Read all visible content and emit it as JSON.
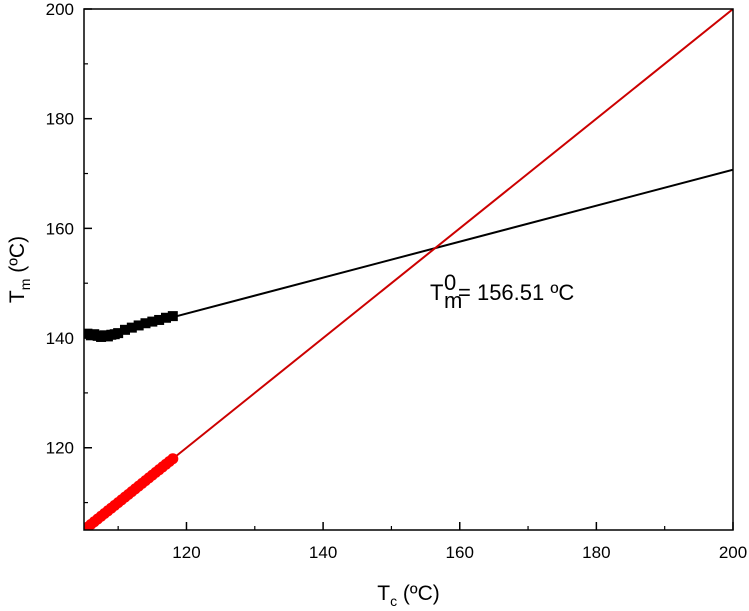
{
  "chart_data": {
    "type": "scatter",
    "xlim": [
      105,
      200
    ],
    "ylim": [
      105,
      200
    ],
    "x_ticks": [
      120,
      140,
      160,
      180,
      200
    ],
    "y_ticks": [
      120,
      140,
      160,
      180,
      200
    ],
    "x_tick_labels": [
      "120",
      "140",
      "160",
      "180",
      "200"
    ],
    "y_tick_labels": [
      "120",
      "140",
      "160",
      "180",
      "200"
    ],
    "xlabel": {
      "main": "T",
      "sub": "c",
      "unit": " (ºC)"
    },
    "ylabel": {
      "main": "T",
      "sub": "m",
      "unit": " (ºC)"
    },
    "grid": false,
    "annotation": {
      "main": "T",
      "sup": "0",
      "sub": "m",
      "rest": " = 156.51 ºC"
    },
    "series": [
      {
        "marker": "square",
        "color": "#000000",
        "x": [
          105.5,
          106.0,
          106.5,
          107.0,
          107.5,
          108.0,
          108.5,
          109.0,
          109.5,
          110.0,
          111.0,
          112.0,
          113.0,
          114.0,
          115.0,
          116.0,
          117.0,
          118.0
        ],
        "y": [
          140.8,
          140.5,
          140.7,
          140.4,
          140.2,
          140.5,
          140.3,
          140.6,
          140.7,
          140.9,
          141.5,
          141.9,
          142.3,
          142.7,
          143.0,
          143.3,
          143.7,
          144.0
        ]
      },
      {
        "marker": "circle",
        "color": "#ff0000",
        "x": [
          105.5,
          106.0,
          106.5,
          107.0,
          107.5,
          108.0,
          108.5,
          109.0,
          109.5,
          110.0,
          110.5,
          111.0,
          111.5,
          112.0,
          112.5,
          113.0,
          113.5,
          114.0,
          114.5,
          115.0,
          115.5,
          116.0,
          116.5,
          117.0,
          117.5,
          118.0
        ],
        "y": [
          105.5,
          106.0,
          106.5,
          107.0,
          107.5,
          108.0,
          108.5,
          109.0,
          109.5,
          110.0,
          110.5,
          111.0,
          111.5,
          112.0,
          112.5,
          113.0,
          113.5,
          114.0,
          114.5,
          115.0,
          115.5,
          116.0,
          116.5,
          117.0,
          117.5,
          118.0
        ]
      }
    ],
    "lines": [
      {
        "color": "#000000",
        "x": [
          118,
          200
        ],
        "y": [
          143.8,
          170.7
        ]
      },
      {
        "color": "#cc0000",
        "x": [
          105,
          200
        ],
        "y": [
          105,
          200
        ]
      }
    ]
  }
}
